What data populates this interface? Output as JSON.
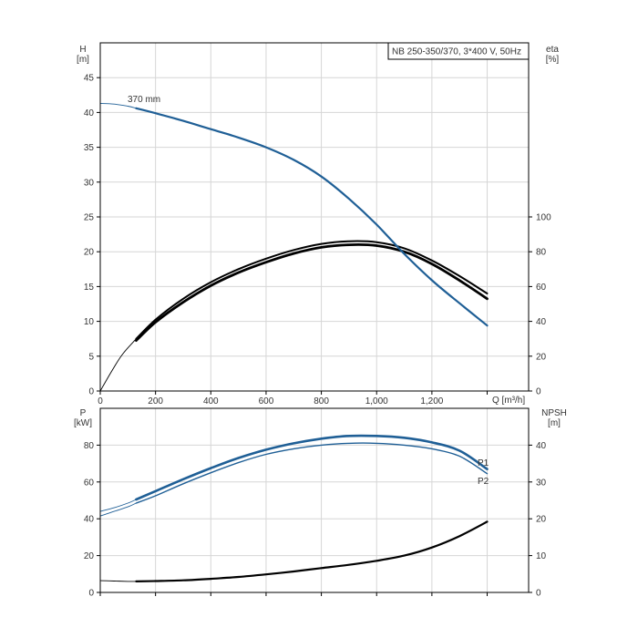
{
  "colors": {
    "blue": "#1f5f96",
    "black": "#000000",
    "grid": "#d6d6d6",
    "text": "#333333"
  },
  "chart_data": [
    {
      "type": "line",
      "legend_box": "NB 250-350/370, 3*400 V, 50Hz",
      "y_left_label": "H",
      "y_left_unit": "[m]",
      "y_right_label": "eta",
      "y_right_unit": "[%]",
      "xlabel": "Q [m³/h]",
      "xlim": [
        0,
        1550
      ],
      "ylim_left": [
        0,
        50
      ],
      "ylim_right": [
        0,
        200
      ],
      "x_ticks": [
        "0",
        "200",
        "400",
        "600",
        "800",
        "1,000",
        "1,200"
      ],
      "x_tick_values": [
        0,
        200,
        400,
        600,
        800,
        1000,
        1200
      ],
      "y_left_ticks": [
        0,
        5,
        10,
        15,
        20,
        25,
        30,
        35,
        40,
        45
      ],
      "y_right_ticks": [
        0,
        20,
        40,
        60,
        80,
        100
      ],
      "grid": true,
      "series": [
        {
          "name": "370 mm",
          "axis": "left",
          "color": "#1f5f96",
          "x": [
            130,
            200,
            300,
            400,
            500,
            600,
            700,
            800,
            900,
            1000,
            1100,
            1200,
            1300,
            1400
          ],
          "y": [
            40.6,
            39.9,
            38.8,
            37.6,
            36.4,
            35.0,
            33.2,
            30.8,
            27.6,
            23.9,
            19.7,
            15.9,
            12.6,
            9.4
          ],
          "ext_x": [
            0,
            50,
            100,
            130
          ],
          "ext_y": [
            41.3,
            41.2,
            40.9,
            40.6
          ]
        },
        {
          "axis": "right",
          "color": "#000000",
          "x": [
            130,
            200,
            300,
            400,
            500,
            600,
            700,
            800,
            900,
            1000,
            1100,
            1200,
            1300,
            1400
          ],
          "y": [
            30,
            41,
            53,
            62.5,
            70,
            76,
            81,
            84.5,
            86,
            85.5,
            82,
            75,
            66,
            56
          ],
          "ext_x": [
            0,
            40,
            80,
            130
          ],
          "ext_y": [
            0,
            11,
            21,
            30
          ]
        },
        {
          "axis": "right",
          "color": "#000000",
          "x": [
            130,
            200,
            300,
            400,
            500,
            600,
            700,
            800,
            900,
            1000,
            1100,
            1200,
            1300,
            1400
          ],
          "y": [
            29,
            39.5,
            51,
            60.5,
            68,
            74,
            79,
            82.5,
            84,
            83.5,
            80,
            73,
            63.5,
            53
          ],
          "ext_x": [],
          "ext_y": []
        }
      ]
    },
    {
      "type": "line",
      "y_left_label": "P",
      "y_left_unit": "[kW]",
      "y_right_label": "NPSH",
      "y_right_unit": "[m]",
      "xlim": [
        0,
        1550
      ],
      "ylim_left": [
        0,
        100
      ],
      "ylim_right": [
        0,
        50
      ],
      "y_left_ticks": [
        0,
        20,
        40,
        60,
        80
      ],
      "y_right_ticks": [
        0,
        10,
        20,
        30,
        40
      ],
      "grid": true,
      "series": [
        {
          "name": "P1",
          "axis": "left",
          "color": "#1f5f96",
          "x": [
            130,
            200,
            300,
            400,
            500,
            600,
            700,
            800,
            900,
            1000,
            1100,
            1200,
            1300,
            1400
          ],
          "y": [
            50.5,
            55,
            61.5,
            67.5,
            73,
            77.5,
            81,
            83.5,
            85,
            85,
            84,
            81.5,
            77,
            67
          ],
          "ext_x": [
            0,
            50,
            100,
            130
          ],
          "ext_y": [
            44,
            46,
            48.5,
            50.5
          ]
        },
        {
          "name": "P2",
          "axis": "left",
          "color": "#1f5f96",
          "x": [
            130,
            200,
            300,
            400,
            500,
            600,
            700,
            800,
            900,
            1000,
            1100,
            1200,
            1300,
            1400
          ],
          "y": [
            48.5,
            52.5,
            59,
            65,
            70.5,
            75,
            78,
            80,
            81,
            81,
            80,
            78,
            74,
            64.5
          ],
          "ext_x": [
            0,
            50,
            100,
            130
          ],
          "ext_y": [
            41.5,
            44,
            46.5,
            48.5
          ]
        },
        {
          "axis": "right",
          "color": "#000000",
          "x": [
            130,
            200,
            300,
            400,
            500,
            600,
            700,
            800,
            900,
            1000,
            1100,
            1200,
            1300,
            1400
          ],
          "y": [
            3.0,
            3.1,
            3.3,
            3.7,
            4.2,
            4.9,
            5.7,
            6.6,
            7.5,
            8.6,
            10.0,
            12.2,
            15.3,
            19.2
          ],
          "ext_x": [
            0,
            50,
            100,
            130
          ],
          "ext_y": [
            3.2,
            3.1,
            3.0,
            3.0
          ]
        }
      ]
    }
  ]
}
